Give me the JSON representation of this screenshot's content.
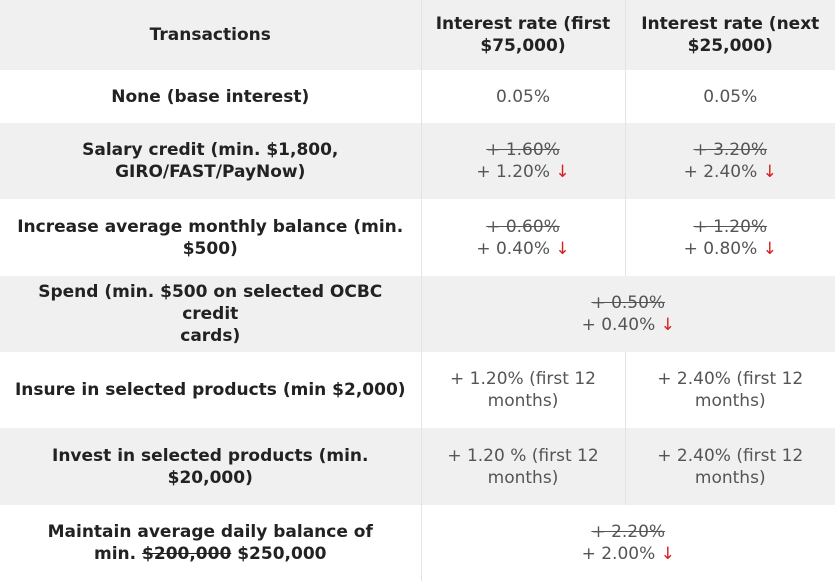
{
  "header": {
    "col1": "Transactions",
    "col2_line1": "Interest rate (first",
    "col2_line2": "$75,000)",
    "col3_line1": "Interest rate (next",
    "col3_line2": "$25,000)"
  },
  "rows": [
    {
      "label": "None (base interest)",
      "col2": "0.05%",
      "col3": "0.05%"
    },
    {
      "label_line1": "Salary credit (min. $1,800,",
      "label_line2": "GIRO/FAST/PayNow)",
      "col2_old": "+ 1.60%",
      "col2_new": "+ 1.20%",
      "col3_old": "+ 3.20%",
      "col3_new": "+ 2.40%"
    },
    {
      "label_line1": "Increase average monthly balance (min.",
      "label_line2": "$500)",
      "col2_old": "+ 0.60%",
      "col2_new": "+ 0.40%",
      "col3_old": "+ 1.20%",
      "col3_new": "+ 0.80%"
    },
    {
      "label_line1": "Spend (min. $500 on selected OCBC credit",
      "label_line2": "cards)",
      "merged_old": "+ 0.50%",
      "merged_new": "+ 0.40%"
    },
    {
      "label": "Insure in selected products (min $2,000)",
      "col2_line1": "+ 1.20% (first 12",
      "col2_line2": "months)",
      "col3_line1": "+ 2.40% (first 12",
      "col3_line2": "months)"
    },
    {
      "label": "Invest in selected products (min. $20,000)",
      "col2_line1": "+ 1.20 % (first 12",
      "col2_line2": "months)",
      "col3_line1": "+ 2.40% (first 12",
      "col3_line2": "months)"
    },
    {
      "label_line1": "Maintain average daily balance of",
      "label_line2_prefix": "min. ",
      "label_line2_old": "$200,000",
      "label_line2_new": " $250,000",
      "merged_old": "+ 2.20%",
      "merged_new": "+ 2.00%"
    }
  ],
  "icons": {
    "decrease_arrow": "↓"
  },
  "colors": {
    "header_bg": "#f0f0f0",
    "shaded_row_bg": "#f0f0f0",
    "arrow": "#d81e1e",
    "divider": "#e4e4e4"
  }
}
